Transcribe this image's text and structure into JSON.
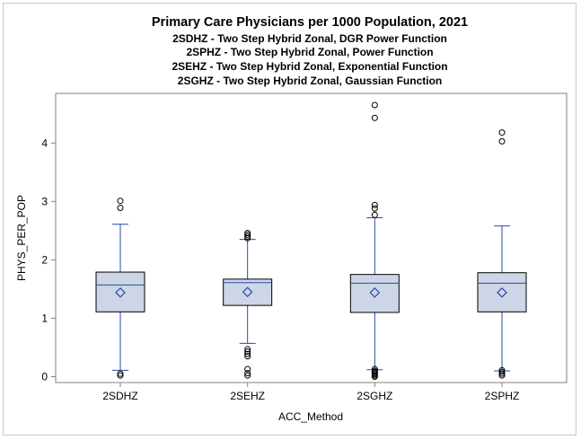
{
  "chart_data": {
    "type": "box",
    "title": "Primary Care Physicians per 1000 Population, 2021",
    "subtitles": [
      "2SDHZ - Two Step Hybrid Zonal, DGR Power Function",
      "2SPHZ - Two Step Hybrid Zonal, Power Function",
      "2SEHZ - Two Step Hybrid Zonal, Exponential Function",
      "2SGHZ - Two Step Hybrid Zonal, Gaussian Function"
    ],
    "xlabel": "ACC_Method",
    "ylabel": "PHYS_PER_POP",
    "ylim": [
      -0.1,
      4.85
    ],
    "yticks": [
      0,
      1,
      2,
      3,
      4
    ],
    "grid": false,
    "colors": {
      "box_fill": "#cdd6e6",
      "line": "#2a4aa8",
      "outlier": "#000000",
      "frame": "#c8c8c8",
      "axis": "#808080"
    },
    "categories": [
      "2SDHZ",
      "2SEHZ",
      "2SGHZ",
      "2SPHZ"
    ],
    "boxes": [
      {
        "category": "2SDHZ",
        "whisker_low": 0.11,
        "q1": 1.11,
        "median": 1.57,
        "q3": 1.79,
        "whisker_high": 2.61,
        "mean": 1.44,
        "outliers": [
          0.05,
          0.02,
          2.89,
          3.01
        ]
      },
      {
        "category": "2SEHZ",
        "whisker_low": 0.57,
        "q1": 1.22,
        "median": 1.61,
        "q3": 1.67,
        "whisker_high": 2.35,
        "mean": 1.45,
        "outliers": [
          0.02,
          0.06,
          0.13,
          0.35,
          0.39,
          0.43,
          0.47,
          2.37,
          2.4,
          2.43,
          2.46
        ]
      },
      {
        "category": "2SGHZ",
        "whisker_low": 0.12,
        "q1": 1.1,
        "median": 1.6,
        "q3": 1.75,
        "whisker_high": 2.72,
        "mean": 1.44,
        "outliers": [
          0.0,
          0.02,
          0.04,
          0.06,
          0.08,
          0.1,
          0.13,
          2.77,
          2.88,
          2.94,
          4.43,
          4.65
        ]
      },
      {
        "category": "2SPHZ",
        "whisker_low": 0.1,
        "q1": 1.11,
        "median": 1.6,
        "q3": 1.78,
        "whisker_high": 2.58,
        "mean": 1.44,
        "outliers": [
          0.02,
          0.05,
          0.08,
          0.11,
          4.03,
          4.18
        ]
      }
    ]
  }
}
